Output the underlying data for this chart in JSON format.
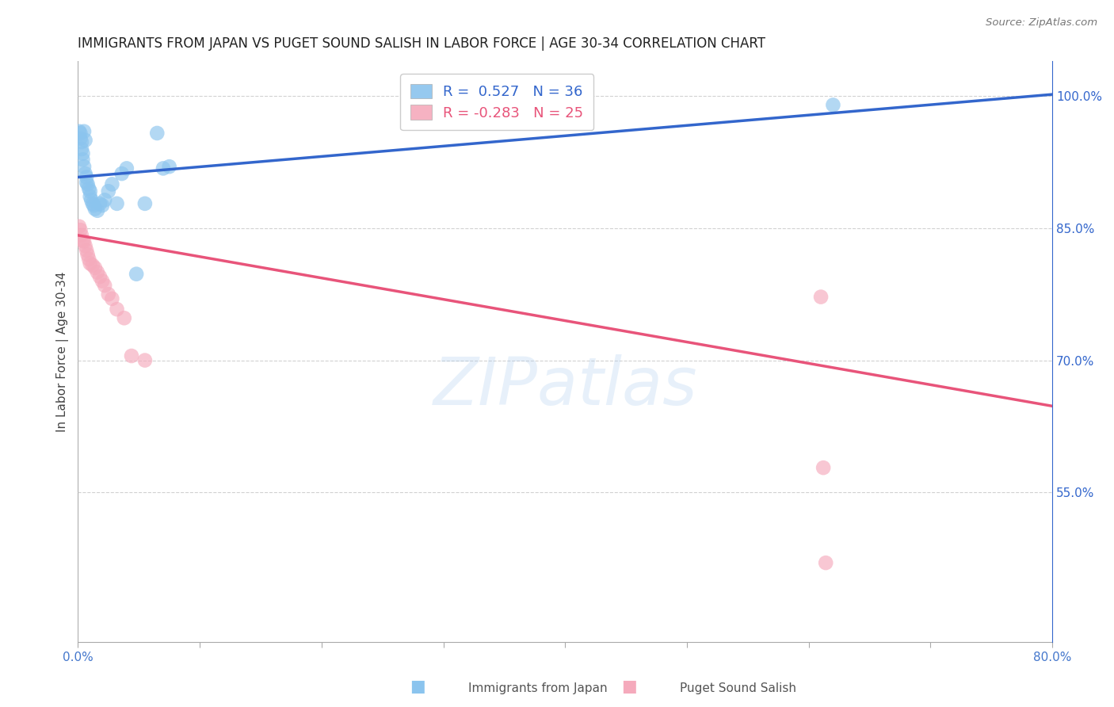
{
  "title": "IMMIGRANTS FROM JAPAN VS PUGET SOUND SALISH IN LABOR FORCE | AGE 30-34 CORRELATION CHART",
  "source": "Source: ZipAtlas.com",
  "ylabel": "In Labor Force | Age 30-34",
  "xlim": [
    0.0,
    0.8
  ],
  "ylim": [
    0.38,
    1.04
  ],
  "xticks": [
    0.0,
    0.1,
    0.2,
    0.3,
    0.4,
    0.5,
    0.6,
    0.7,
    0.8
  ],
  "xticklabels": [
    "0.0%",
    "",
    "",
    "",
    "",
    "",
    "",
    "",
    "80.0%"
  ],
  "yticks_right": [
    1.0,
    0.85,
    0.7,
    0.55
  ],
  "yticklabels_right": [
    "100.0%",
    "85.0%",
    "70.0%",
    "55.0%"
  ],
  "blue_color": "#8BC4EE",
  "pink_color": "#F5AABC",
  "blue_line_color": "#3366CC",
  "pink_line_color": "#E8547A",
  "background_color": "#FFFFFF",
  "grid_color": "#CCCCCC",
  "legend_text_blue": "R =  0.527   N = 36",
  "legend_text_pink": "R = -0.283   N = 25",
  "legend_label_blue": "Immigrants from Japan",
  "legend_label_pink": "Puget Sound Salish",
  "watermark": "ZIPatlas",
  "blue_line_x0": 0.0,
  "blue_line_y0": 0.908,
  "blue_line_x1": 0.8,
  "blue_line_y1": 1.002,
  "pink_line_x0": 0.0,
  "pink_line_y0": 0.842,
  "pink_line_x1": 0.8,
  "pink_line_y1": 0.648,
  "blue_x": [
    0.001,
    0.002,
    0.002,
    0.003,
    0.003,
    0.004,
    0.004,
    0.005,
    0.005,
    0.006,
    0.006,
    0.007,
    0.007,
    0.008,
    0.009,
    0.01,
    0.01,
    0.011,
    0.012,
    0.013,
    0.014,
    0.016,
    0.018,
    0.02,
    0.022,
    0.025,
    0.028,
    0.032,
    0.036,
    0.04,
    0.048,
    0.055,
    0.065,
    0.07,
    0.075,
    0.62
  ],
  "blue_y": [
    0.96,
    0.958,
    0.952,
    0.948,
    0.94,
    0.935,
    0.928,
    0.92,
    0.96,
    0.95,
    0.912,
    0.908,
    0.902,
    0.9,
    0.895,
    0.892,
    0.886,
    0.882,
    0.878,
    0.876,
    0.872,
    0.87,
    0.878,
    0.876,
    0.882,
    0.892,
    0.9,
    0.878,
    0.912,
    0.918,
    0.798,
    0.878,
    0.958,
    0.918,
    0.92,
    0.99
  ],
  "pink_x": [
    0.001,
    0.002,
    0.003,
    0.004,
    0.005,
    0.006,
    0.007,
    0.008,
    0.009,
    0.01,
    0.012,
    0.014,
    0.016,
    0.018,
    0.02,
    0.022,
    0.025,
    0.028,
    0.032,
    0.038,
    0.044,
    0.055,
    0.61,
    0.612,
    0.614
  ],
  "pink_y": [
    0.852,
    0.848,
    0.842,
    0.836,
    0.835,
    0.83,
    0.825,
    0.82,
    0.815,
    0.81,
    0.808,
    0.805,
    0.8,
    0.795,
    0.79,
    0.785,
    0.775,
    0.77,
    0.758,
    0.748,
    0.705,
    0.7,
    0.772,
    0.578,
    0.47
  ]
}
